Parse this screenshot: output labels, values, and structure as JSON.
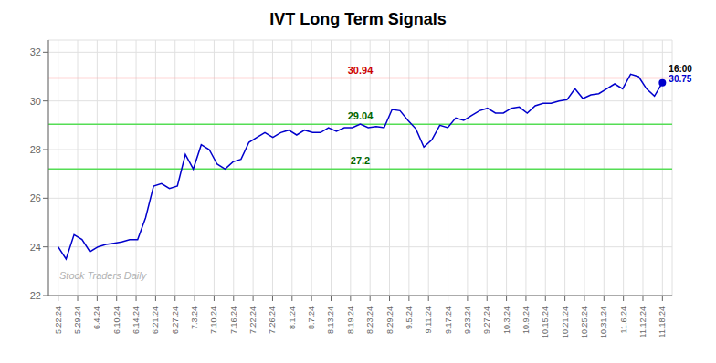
{
  "chart_data": {
    "type": "line",
    "title": "IVT Long Term Signals",
    "watermark": "Stock Traders Daily",
    "color": "#0000cc",
    "grid": true,
    "x": [
      0,
      0.407895,
      0.815789,
      1.223684,
      1.631579,
      2.039474,
      2.447368,
      2.855263,
      3.263158,
      3.671053,
      4.078947,
      4.486842,
      4.894737,
      5.302632,
      5.710526,
      6.118421,
      6.526316,
      6.934211,
      7.342105,
      7.75,
      8.157895,
      8.565789,
      8.973684,
      9.381579,
      9.789474,
      10.197368,
      10.605263,
      11.013158,
      11.421053,
      11.828947,
      12.236842,
      12.644737,
      13.052632,
      13.460526,
      13.868421,
      14.276316,
      14.684211,
      15.092105,
      15.5,
      15.907895,
      16.315789,
      16.723684,
      17.131579,
      17.539474,
      17.947368,
      18.355263,
      18.763158,
      19.171053,
      19.578947,
      19.986842,
      20.394737,
      20.802632,
      21.210526,
      21.618421,
      22.026316,
      22.434211,
      22.842105,
      23.25,
      23.657895,
      24.065789,
      24.473684,
      24.881579,
      25.289474,
      25.697368,
      26.105263,
      26.513158,
      26.921053,
      27.328947,
      27.736842,
      28.144737,
      28.552632,
      28.960526,
      29.368421,
      29.776316,
      30.184211,
      30.592105,
      31
    ],
    "values": [
      24.0,
      23.5,
      24.5,
      24.3,
      23.8,
      24.0,
      24.1,
      24.15,
      24.2,
      24.3,
      24.3,
      25.2,
      26.5,
      26.6,
      26.4,
      26.5,
      27.8,
      27.2,
      28.2,
      28.0,
      27.4,
      27.2,
      27.5,
      27.6,
      28.3,
      28.5,
      28.7,
      28.5,
      28.7,
      28.8,
      28.6,
      28.8,
      28.7,
      28.7,
      28.9,
      28.75,
      28.9,
      28.9,
      29.05,
      28.9,
      28.95,
      28.9,
      29.65,
      29.6,
      29.2,
      28.85,
      28.1,
      28.4,
      29.0,
      28.9,
      29.3,
      29.2,
      29.4,
      29.6,
      29.7,
      29.5,
      29.5,
      29.7,
      29.75,
      29.5,
      29.8,
      29.9,
      29.9,
      30.0,
      30.05,
      30.5,
      30.1,
      30.25,
      30.3,
      30.5,
      30.7,
      30.5,
      31.1,
      31.0,
      30.5,
      30.2,
      30.75
    ],
    "xlim": [
      -0.5,
      31.5
    ],
    "xticks": [
      {
        "value": 0,
        "label": "5.22.24"
      },
      {
        "value": 1,
        "label": "5.29.24"
      },
      {
        "value": 2,
        "label": "6.4.24"
      },
      {
        "value": 3,
        "label": "6.10.24"
      },
      {
        "value": 4,
        "label": "6.14.24"
      },
      {
        "value": 5,
        "label": "6.21.24"
      },
      {
        "value": 6,
        "label": "6.27.24"
      },
      {
        "value": 7,
        "label": "7.3.24"
      },
      {
        "value": 8,
        "label": "7.10.24"
      },
      {
        "value": 9,
        "label": "7.16.24"
      },
      {
        "value": 10,
        "label": "7.22.24"
      },
      {
        "value": 11,
        "label": "7.26.24"
      },
      {
        "value": 12,
        "label": "8.1.24"
      },
      {
        "value": 13,
        "label": "8.7.24"
      },
      {
        "value": 14,
        "label": "8.13.24"
      },
      {
        "value": 15,
        "label": "8.19.24"
      },
      {
        "value": 16,
        "label": "8.23.24"
      },
      {
        "value": 17,
        "label": "8.29.24"
      },
      {
        "value": 18,
        "label": "9.5.24"
      },
      {
        "value": 19,
        "label": "9.11.24"
      },
      {
        "value": 20,
        "label": "9.17.24"
      },
      {
        "value": 21,
        "label": "9.23.24"
      },
      {
        "value": 22,
        "label": "9.27.24"
      },
      {
        "value": 23,
        "label": "10.3.24"
      },
      {
        "value": 24,
        "label": "10.9.24"
      },
      {
        "value": 25,
        "label": "10.15.24"
      },
      {
        "value": 26,
        "label": "10.21.24"
      },
      {
        "value": 27,
        "label": "10.25.24"
      },
      {
        "value": 28,
        "label": "10.31.24"
      },
      {
        "value": 29,
        "label": "11.6.24"
      },
      {
        "value": 30,
        "label": "11.12.24"
      },
      {
        "value": 31,
        "label": "11.18.24"
      }
    ],
    "ylim": [
      22,
      32.5
    ],
    "yticks": [
      22,
      24,
      26,
      28,
      30,
      32
    ],
    "reference_lines": [
      {
        "value": 30.94,
        "label": "30.94",
        "color": "#ffaaaa",
        "label_color": "#cc0000"
      },
      {
        "value": 29.04,
        "label": "29.04",
        "color": "#55dd55",
        "label_color": "#006600"
      },
      {
        "value": 27.2,
        "label": "27.2",
        "color": "#55dd55",
        "label_color": "#006600"
      }
    ],
    "last_point": {
      "x": 31,
      "y": 30.75,
      "time_label": "16:00",
      "price_label": "30.75"
    }
  }
}
